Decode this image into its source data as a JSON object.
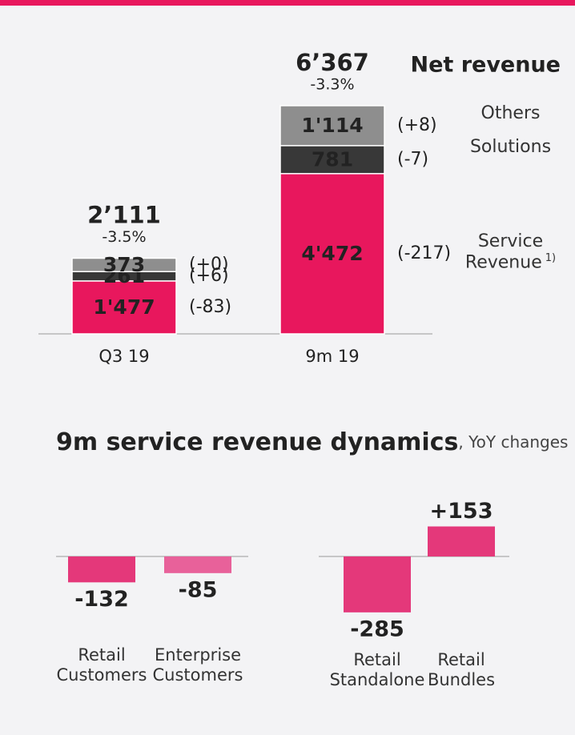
{
  "chart_data": [
    {
      "type": "stacked_bar",
      "title": "Net revenue",
      "categories": [
        "Q3 19",
        "9m 19"
      ],
      "series": [
        {
          "name": "Service Revenue",
          "note": "1)",
          "color": "#e8175d",
          "values": [
            1477,
            4472
          ],
          "value_labels": [
            "1'477",
            "4'472"
          ],
          "changes": [
            -83,
            -217
          ],
          "change_labels": [
            "(-83)",
            "(-217)"
          ]
        },
        {
          "name": "Solutions",
          "color": "#383838",
          "values": [
            261,
            781
          ],
          "changes": [
            6,
            -7
          ],
          "change_labels": [
            "(+6)",
            "(-7)"
          ]
        },
        {
          "name": "Others",
          "color": "#8e8e8e",
          "values": [
            373,
            1114
          ],
          "value_labels": [
            "373",
            "1'114"
          ],
          "changes": [
            0,
            8
          ],
          "change_labels": [
            "(+0)",
            "(+8)"
          ]
        }
      ],
      "totals": [
        2111,
        6367
      ],
      "total_labels": [
        "2’111",
        "6’367"
      ],
      "total_changes": [
        -3.5,
        -3.3
      ],
      "total_change_labels": [
        "-3.5%",
        "-3.3%"
      ]
    },
    {
      "type": "bar",
      "title": "9m service revenue dynamics",
      "subtitle": ", YoY changes",
      "categories": [
        "Retail Customers",
        "Enterprise Customers",
        "Retail Standalone",
        "Retail Bundles"
      ],
      "values": [
        -132,
        -85,
        -285,
        153
      ],
      "value_labels": [
        "-132",
        "-85",
        "-285",
        "+153"
      ],
      "colors": [
        "#e4387a",
        "#e8619a",
        "#e4387a",
        "#e4387a"
      ]
    }
  ]
}
